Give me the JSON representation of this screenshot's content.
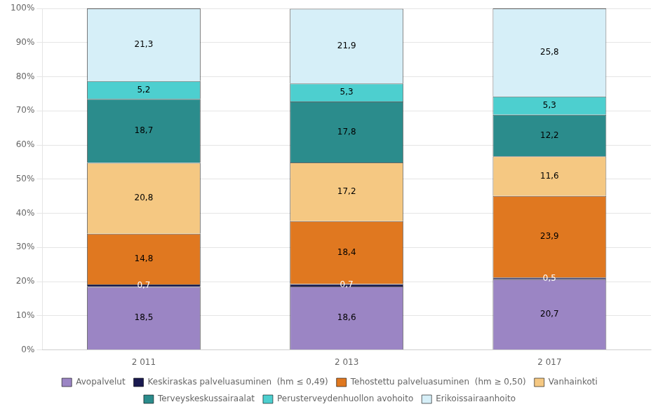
{
  "chart_data": {
    "type": "bar",
    "stacked": true,
    "categories": [
      "2 011",
      "2 013",
      "2 017"
    ],
    "series": [
      {
        "name": "Avopalvelut",
        "color": "#9B85C4",
        "values": [
          18.5,
          18.6,
          20.7
        ],
        "value_labels": [
          "18,5",
          "18,6",
          "20,7"
        ]
      },
      {
        "name": "Keskiraskas palveluasuminen  (hm ≤ 0,49)",
        "color": "#1A1A50",
        "values": [
          0.7,
          0.7,
          0.5
        ],
        "value_labels": [
          "0,7",
          "0,7",
          "0,5"
        ]
      },
      {
        "name": "Tehostettu palveluasuminen  (hm ≥ 0,50)",
        "color": "#E07820",
        "values": [
          14.8,
          18.4,
          23.9
        ],
        "value_labels": [
          "14,8",
          "18,4",
          "23,9"
        ]
      },
      {
        "name": "Vanhainkoti",
        "color": "#F5C882",
        "values": [
          20.8,
          17.2,
          11.6
        ],
        "value_labels": [
          "20,8",
          "17,2",
          "11,6"
        ]
      },
      {
        "name": "Terveyskeskussairaalat",
        "color": "#2B8C8C",
        "values": [
          18.7,
          17.8,
          12.2
        ],
        "value_labels": [
          "18,7",
          "17,8",
          "12,2"
        ]
      },
      {
        "name": "Perusterveydenhuollon avohoito",
        "color": "#4DCFCF",
        "values": [
          5.2,
          5.3,
          5.3
        ],
        "value_labels": [
          "5,2",
          "5,3",
          "5,3"
        ]
      },
      {
        "name": "Erikoissairaanhoito",
        "color": "#D6EFF8",
        "values": [
          21.3,
          21.9,
          25.8
        ],
        "value_labels": [
          "21,3",
          "21,9",
          "25,8"
        ]
      }
    ],
    "ylim": [
      0,
      100
    ],
    "yticks": [
      {
        "value": 0,
        "label": "0%"
      },
      {
        "value": 10,
        "label": "10%"
      },
      {
        "value": 20,
        "label": "20%"
      },
      {
        "value": 30,
        "label": "30%"
      },
      {
        "value": 40,
        "label": "40%"
      },
      {
        "value": 50,
        "label": "50%"
      },
      {
        "value": 60,
        "label": "60%"
      },
      {
        "value": 70,
        "label": "70%"
      },
      {
        "value": 80,
        "label": "80%"
      },
      {
        "value": 90,
        "label": "90%"
      },
      {
        "value": 100,
        "label": "100%"
      }
    ],
    "grid": true,
    "legend": "bottom",
    "data_labels": true
  }
}
